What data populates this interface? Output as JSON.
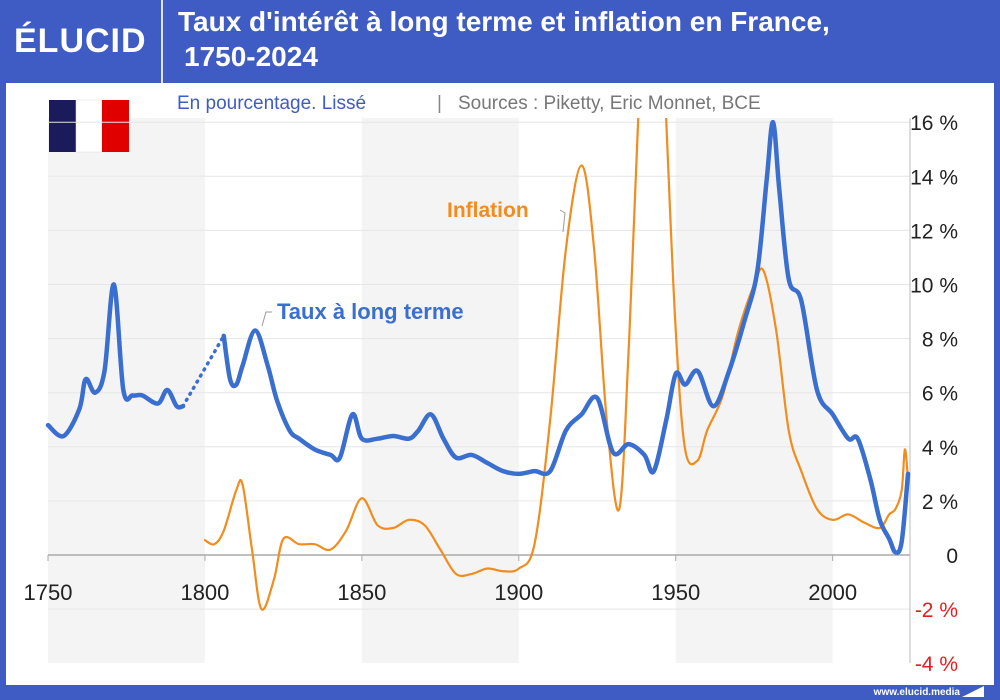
{
  "brand": {
    "logo": "ÉLUCID",
    "footer": "www.elucid.media"
  },
  "colors": {
    "frame": "#3f5bc4",
    "taux": "#3a6fd0",
    "inflation": "#f28c1e",
    "negative": "#e02020",
    "band": "#f3f3f3"
  },
  "chart_data": {
    "type": "line",
    "title_line1": "Taux d'intérêt à long terme et inflation en France,",
    "title_line2": "1750-2024",
    "subtitle": "En pourcentage. Lissé",
    "separator": "|",
    "sources": "Sources : Piketty, Eric Monnet, BCE",
    "xlim": [
      1750,
      2024
    ],
    "ylim": [
      -4,
      16
    ],
    "x_ticks": [
      {
        "v": 1750,
        "label": "1750"
      },
      {
        "v": 1800,
        "label": "1800"
      },
      {
        "v": 1850,
        "label": "1850"
      },
      {
        "v": 1900,
        "label": "1900"
      },
      {
        "v": 1950,
        "label": "1950"
      },
      {
        "v": 2000,
        "label": "2000"
      }
    ],
    "y_ticks": [
      {
        "v": 16,
        "label": "16 %"
      },
      {
        "v": 14,
        "label": "14 %"
      },
      {
        "v": 12,
        "label": "12 %"
      },
      {
        "v": 10,
        "label": "10 %"
      },
      {
        "v": 8,
        "label": "8 %"
      },
      {
        "v": 6,
        "label": "6 %"
      },
      {
        "v": 4,
        "label": "4 %"
      },
      {
        "v": 2,
        "label": "2 %"
      },
      {
        "v": 0,
        "label": "0"
      },
      {
        "v": -2,
        "label": "-2 %"
      },
      {
        "v": -4,
        "label": "-4 %"
      }
    ],
    "series": [
      {
        "name": "Taux à long terme",
        "color": "#3a6fd0",
        "segments": [
          {
            "style": "solid",
            "x": [
              1750,
              1755,
              1760,
              1762,
              1765,
              1768,
              1771,
              1774,
              1777,
              1780,
              1785,
              1788,
              1791,
              1793
            ],
            "y": [
              4.8,
              4.4,
              5.4,
              6.5,
              6.0,
              6.8,
              10.0,
              6.1,
              5.9,
              5.9,
              5.6,
              6.1,
              5.5,
              5.5
            ]
          },
          {
            "style": "dotted",
            "x": [
              1793,
              1806
            ],
            "y": [
              5.5,
              8.1
            ]
          },
          {
            "style": "solid",
            "x": [
              1806,
              1808,
              1810,
              1812,
              1816,
              1820,
              1823,
              1827,
              1830,
              1835,
              1840,
              1843,
              1847,
              1850,
              1855,
              1860,
              1865,
              1868,
              1872,
              1876,
              1880,
              1885,
              1890,
              1895,
              1900,
              1905,
              1910,
              1915,
              1920,
              1925,
              1930,
              1935,
              1940,
              1943,
              1947,
              1950,
              1953,
              1957,
              1962,
              1967,
              1972,
              1976,
              1979,
              1981,
              1983,
              1986,
              1990,
              1995,
              2000,
              2005,
              2008,
              2012,
              2015,
              2018,
              2020,
              2022,
              2024
            ],
            "y": [
              8.1,
              6.5,
              6.3,
              7.0,
              8.3,
              7.0,
              5.7,
              4.6,
              4.3,
              3.9,
              3.7,
              3.6,
              5.2,
              4.3,
              4.3,
              4.4,
              4.3,
              4.6,
              5.2,
              4.3,
              3.6,
              3.7,
              3.4,
              3.1,
              3.0,
              3.1,
              3.1,
              4.6,
              5.2,
              5.8,
              3.8,
              4.1,
              3.7,
              3.1,
              5.0,
              6.7,
              6.3,
              6.8,
              5.5,
              6.8,
              8.7,
              10.5,
              13.9,
              16.0,
              13.5,
              10.2,
              9.4,
              6.1,
              5.2,
              4.3,
              4.3,
              2.8,
              1.3,
              0.6,
              0.1,
              0.5,
              3.0
            ]
          }
        ]
      },
      {
        "name": "Inflation",
        "color": "#f28c1e",
        "segments": [
          {
            "style": "solid",
            "x": [
              1800,
              1803,
              1806,
              1810,
              1812,
              1815,
              1818,
              1822,
              1825,
              1830,
              1835,
              1840,
              1845,
              1850,
              1855,
              1860,
              1865,
              1870,
              1875,
              1880,
              1885,
              1890,
              1895,
              1900,
              1905,
              1910,
              1915,
              1920,
              1924,
              1928,
              1932,
              1935,
              1938,
              1942,
              1947,
              1950,
              1953,
              1957,
              1960,
              1965,
              1970,
              1975,
              1978,
              1982,
              1986,
              1990,
              1995,
              2000,
              2005,
              2010,
              2015,
              2018,
              2020,
              2022,
              2023,
              2024
            ],
            "y": [
              0.55,
              0.4,
              0.9,
              2.4,
              2.6,
              0.2,
              -2.0,
              -0.9,
              0.6,
              0.4,
              0.4,
              0.2,
              0.9,
              2.1,
              1.1,
              1.0,
              1.3,
              1.1,
              0.2,
              -0.7,
              -0.7,
              -0.5,
              -0.6,
              -0.5,
              0.4,
              5.0,
              11.3,
              14.4,
              11.3,
              5.0,
              1.7,
              7.6,
              16.0,
              30.0,
              16.0,
              8.3,
              3.9,
              3.5,
              4.6,
              5.9,
              8.3,
              10.0,
              10.5,
              8.3,
              4.6,
              3.1,
              1.7,
              1.3,
              1.5,
              1.2,
              1.0,
              1.5,
              1.7,
              2.4,
              3.9,
              2.8
            ]
          }
        ]
      }
    ],
    "annotations": [
      {
        "text": "Inflation",
        "series": "Inflation"
      },
      {
        "text": "Taux à long terme",
        "series": "Taux à long terme"
      }
    ]
  }
}
